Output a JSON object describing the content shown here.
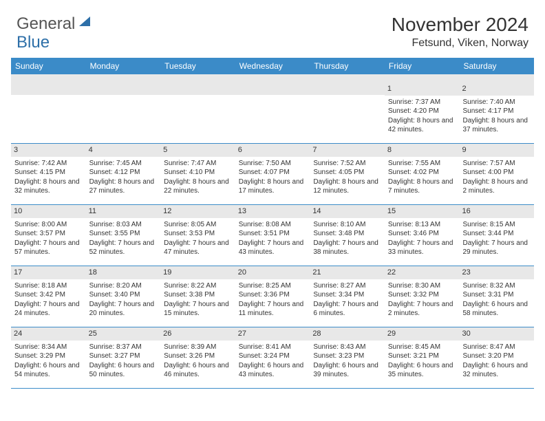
{
  "logo": {
    "text1": "General",
    "text2": "Blue"
  },
  "title": "November 2024",
  "location": "Fetsund, Viken, Norway",
  "colors": {
    "header_bg": "#3b8bc8",
    "header_text": "#ffffff",
    "daynum_bg": "#e8e8e8",
    "border": "#3b8bc8",
    "body_text": "#333333",
    "logo_gray": "#6a6a6a",
    "logo_blue": "#2d6fa8"
  },
  "day_names": [
    "Sunday",
    "Monday",
    "Tuesday",
    "Wednesday",
    "Thursday",
    "Friday",
    "Saturday"
  ],
  "weeks": [
    [
      {
        "num": "",
        "sunrise": "",
        "sunset": "",
        "daylight": ""
      },
      {
        "num": "",
        "sunrise": "",
        "sunset": "",
        "daylight": ""
      },
      {
        "num": "",
        "sunrise": "",
        "sunset": "",
        "daylight": ""
      },
      {
        "num": "",
        "sunrise": "",
        "sunset": "",
        "daylight": ""
      },
      {
        "num": "",
        "sunrise": "",
        "sunset": "",
        "daylight": ""
      },
      {
        "num": "1",
        "sunrise": "Sunrise: 7:37 AM",
        "sunset": "Sunset: 4:20 PM",
        "daylight": "Daylight: 8 hours and 42 minutes."
      },
      {
        "num": "2",
        "sunrise": "Sunrise: 7:40 AM",
        "sunset": "Sunset: 4:17 PM",
        "daylight": "Daylight: 8 hours and 37 minutes."
      }
    ],
    [
      {
        "num": "3",
        "sunrise": "Sunrise: 7:42 AM",
        "sunset": "Sunset: 4:15 PM",
        "daylight": "Daylight: 8 hours and 32 minutes."
      },
      {
        "num": "4",
        "sunrise": "Sunrise: 7:45 AM",
        "sunset": "Sunset: 4:12 PM",
        "daylight": "Daylight: 8 hours and 27 minutes."
      },
      {
        "num": "5",
        "sunrise": "Sunrise: 7:47 AM",
        "sunset": "Sunset: 4:10 PM",
        "daylight": "Daylight: 8 hours and 22 minutes."
      },
      {
        "num": "6",
        "sunrise": "Sunrise: 7:50 AM",
        "sunset": "Sunset: 4:07 PM",
        "daylight": "Daylight: 8 hours and 17 minutes."
      },
      {
        "num": "7",
        "sunrise": "Sunrise: 7:52 AM",
        "sunset": "Sunset: 4:05 PM",
        "daylight": "Daylight: 8 hours and 12 minutes."
      },
      {
        "num": "8",
        "sunrise": "Sunrise: 7:55 AM",
        "sunset": "Sunset: 4:02 PM",
        "daylight": "Daylight: 8 hours and 7 minutes."
      },
      {
        "num": "9",
        "sunrise": "Sunrise: 7:57 AM",
        "sunset": "Sunset: 4:00 PM",
        "daylight": "Daylight: 8 hours and 2 minutes."
      }
    ],
    [
      {
        "num": "10",
        "sunrise": "Sunrise: 8:00 AM",
        "sunset": "Sunset: 3:57 PM",
        "daylight": "Daylight: 7 hours and 57 minutes."
      },
      {
        "num": "11",
        "sunrise": "Sunrise: 8:03 AM",
        "sunset": "Sunset: 3:55 PM",
        "daylight": "Daylight: 7 hours and 52 minutes."
      },
      {
        "num": "12",
        "sunrise": "Sunrise: 8:05 AM",
        "sunset": "Sunset: 3:53 PM",
        "daylight": "Daylight: 7 hours and 47 minutes."
      },
      {
        "num": "13",
        "sunrise": "Sunrise: 8:08 AM",
        "sunset": "Sunset: 3:51 PM",
        "daylight": "Daylight: 7 hours and 43 minutes."
      },
      {
        "num": "14",
        "sunrise": "Sunrise: 8:10 AM",
        "sunset": "Sunset: 3:48 PM",
        "daylight": "Daylight: 7 hours and 38 minutes."
      },
      {
        "num": "15",
        "sunrise": "Sunrise: 8:13 AM",
        "sunset": "Sunset: 3:46 PM",
        "daylight": "Daylight: 7 hours and 33 minutes."
      },
      {
        "num": "16",
        "sunrise": "Sunrise: 8:15 AM",
        "sunset": "Sunset: 3:44 PM",
        "daylight": "Daylight: 7 hours and 29 minutes."
      }
    ],
    [
      {
        "num": "17",
        "sunrise": "Sunrise: 8:18 AM",
        "sunset": "Sunset: 3:42 PM",
        "daylight": "Daylight: 7 hours and 24 minutes."
      },
      {
        "num": "18",
        "sunrise": "Sunrise: 8:20 AM",
        "sunset": "Sunset: 3:40 PM",
        "daylight": "Daylight: 7 hours and 20 minutes."
      },
      {
        "num": "19",
        "sunrise": "Sunrise: 8:22 AM",
        "sunset": "Sunset: 3:38 PM",
        "daylight": "Daylight: 7 hours and 15 minutes."
      },
      {
        "num": "20",
        "sunrise": "Sunrise: 8:25 AM",
        "sunset": "Sunset: 3:36 PM",
        "daylight": "Daylight: 7 hours and 11 minutes."
      },
      {
        "num": "21",
        "sunrise": "Sunrise: 8:27 AM",
        "sunset": "Sunset: 3:34 PM",
        "daylight": "Daylight: 7 hours and 6 minutes."
      },
      {
        "num": "22",
        "sunrise": "Sunrise: 8:30 AM",
        "sunset": "Sunset: 3:32 PM",
        "daylight": "Daylight: 7 hours and 2 minutes."
      },
      {
        "num": "23",
        "sunrise": "Sunrise: 8:32 AM",
        "sunset": "Sunset: 3:31 PM",
        "daylight": "Daylight: 6 hours and 58 minutes."
      }
    ],
    [
      {
        "num": "24",
        "sunrise": "Sunrise: 8:34 AM",
        "sunset": "Sunset: 3:29 PM",
        "daylight": "Daylight: 6 hours and 54 minutes."
      },
      {
        "num": "25",
        "sunrise": "Sunrise: 8:37 AM",
        "sunset": "Sunset: 3:27 PM",
        "daylight": "Daylight: 6 hours and 50 minutes."
      },
      {
        "num": "26",
        "sunrise": "Sunrise: 8:39 AM",
        "sunset": "Sunset: 3:26 PM",
        "daylight": "Daylight: 6 hours and 46 minutes."
      },
      {
        "num": "27",
        "sunrise": "Sunrise: 8:41 AM",
        "sunset": "Sunset: 3:24 PM",
        "daylight": "Daylight: 6 hours and 43 minutes."
      },
      {
        "num": "28",
        "sunrise": "Sunrise: 8:43 AM",
        "sunset": "Sunset: 3:23 PM",
        "daylight": "Daylight: 6 hours and 39 minutes."
      },
      {
        "num": "29",
        "sunrise": "Sunrise: 8:45 AM",
        "sunset": "Sunset: 3:21 PM",
        "daylight": "Daylight: 6 hours and 35 minutes."
      },
      {
        "num": "30",
        "sunrise": "Sunrise: 8:47 AM",
        "sunset": "Sunset: 3:20 PM",
        "daylight": "Daylight: 6 hours and 32 minutes."
      }
    ]
  ]
}
